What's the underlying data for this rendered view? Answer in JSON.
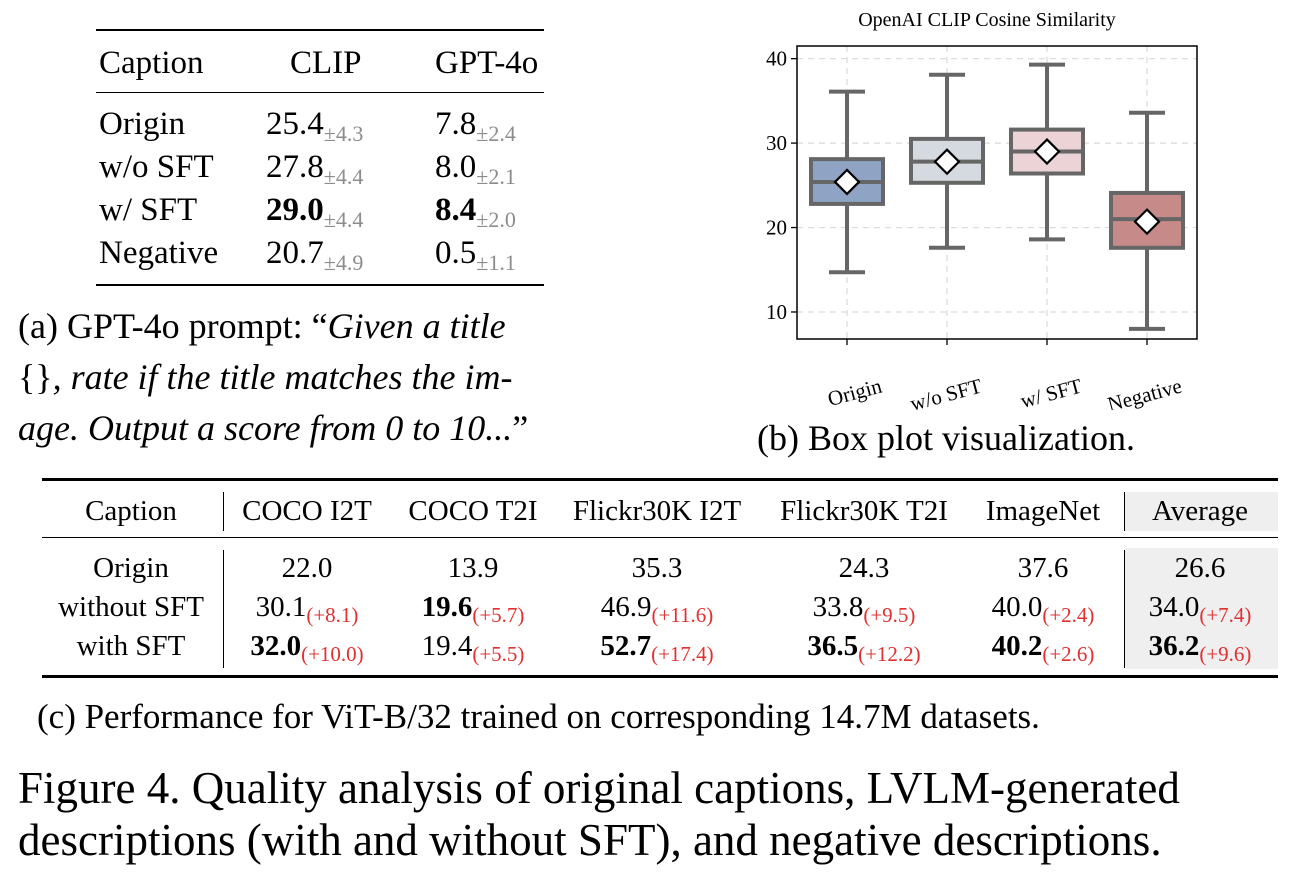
{
  "table_a": {
    "headers": [
      "Caption",
      "CLIP",
      "GPT-4o"
    ],
    "rows": [
      {
        "caption": "Origin",
        "clip": "25.4",
        "clip_pm": "±4.3",
        "gpt": "7.8",
        "gpt_pm": "±2.4"
      },
      {
        "caption": "w/o SFT",
        "clip": "27.8",
        "clip_pm": "±4.4",
        "gpt": "8.0",
        "gpt_pm": "±2.1"
      },
      {
        "caption": "w/ SFT",
        "clip": "29.0",
        "clip_pm": "±4.4",
        "gpt": "8.4",
        "gpt_pm": "±2.0"
      },
      {
        "caption": "Negative",
        "clip": "20.7",
        "clip_pm": "±4.9",
        "gpt": "0.5",
        "gpt_pm": "±1.1"
      }
    ]
  },
  "caption_a": {
    "lead": "(a) GPT-4o prompt: “",
    "l1_italic": "Given a title",
    "l2_braces": "{}",
    "l2_italic": ", rate if the title matches the im-",
    "l3_italic": "age. Output a score from 0 to 10...",
    "close": "”"
  },
  "caption_b": "(b) Box plot visualization.",
  "chart_data": {
    "type": "box",
    "title": "OpenAI CLIP Cosine Similarity",
    "categories": [
      "Origin",
      "w/o SFT",
      "w/ SFT",
      "Negative"
    ],
    "yticks": [
      "10",
      "20",
      "30",
      "40"
    ],
    "ylim": [
      6.8,
      41.5
    ],
    "grid": true,
    "colors": [
      "#8fa4c4",
      "#d5d9e0",
      "#ecd3d5",
      "#c68a88"
    ],
    "boxes": [
      {
        "whisker_low": 14.7,
        "q1": 22.8,
        "median": 25.4,
        "q3": 28.1,
        "whisker_high": 36.1,
        "mean": 25.4
      },
      {
        "whisker_low": 17.6,
        "q1": 25.3,
        "median": 27.8,
        "q3": 30.5,
        "whisker_high": 38.1,
        "mean": 27.8
      },
      {
        "whisker_low": 18.6,
        "q1": 26.4,
        "median": 29.0,
        "q3": 31.6,
        "whisker_high": 39.3,
        "mean": 29.0
      },
      {
        "whisker_low": 8.0,
        "q1": 17.6,
        "median": 21.0,
        "q3": 24.1,
        "whisker_high": 33.6,
        "mean": 20.7
      }
    ]
  },
  "table_c": {
    "headers": [
      "Caption",
      "COCO I2T",
      "COCO T2I",
      "Flickr30K I2T",
      "Flickr30K T2I",
      "ImageNet",
      "Average"
    ],
    "rows": [
      {
        "caption": "Origin",
        "cells": [
          {
            "v": "22.0",
            "d": "",
            "b": false
          },
          {
            "v": "13.9",
            "d": "",
            "b": false
          },
          {
            "v": "35.3",
            "d": "",
            "b": false
          },
          {
            "v": "24.3",
            "d": "",
            "b": false
          },
          {
            "v": "37.6",
            "d": "",
            "b": false
          },
          {
            "v": "26.6",
            "d": "",
            "b": false
          }
        ]
      },
      {
        "caption": "without SFT",
        "cells": [
          {
            "v": "30.1",
            "d": "(+8.1)",
            "b": false
          },
          {
            "v": "19.6",
            "d": "(+5.7)",
            "b": true
          },
          {
            "v": "46.9",
            "d": "(+11.6)",
            "b": false
          },
          {
            "v": "33.8",
            "d": "(+9.5)",
            "b": false
          },
          {
            "v": "40.0",
            "d": "(+2.4)",
            "b": false
          },
          {
            "v": "34.0",
            "d": "(+7.4)",
            "b": false
          }
        ]
      },
      {
        "caption": "with SFT",
        "cells": [
          {
            "v": "32.0",
            "d": "(+10.0)",
            "b": true
          },
          {
            "v": "19.4",
            "d": "(+5.5)",
            "b": false
          },
          {
            "v": "52.7",
            "d": "(+17.4)",
            "b": true
          },
          {
            "v": "36.5",
            "d": "(+12.2)",
            "b": true
          },
          {
            "v": "40.2",
            "d": "(+2.6)",
            "b": true
          },
          {
            "v": "36.2",
            "d": "(+9.6)",
            "b": true
          }
        ]
      }
    ]
  },
  "caption_c": "(c) Performance for ViT-B/32 trained on corresponding 14.7M datasets.",
  "figure_caption": {
    "line1": "Figure 4.  Quality analysis of original captions, LVLM-generated",
    "line2": "descriptions (with and without SFT), and negative descriptions."
  }
}
